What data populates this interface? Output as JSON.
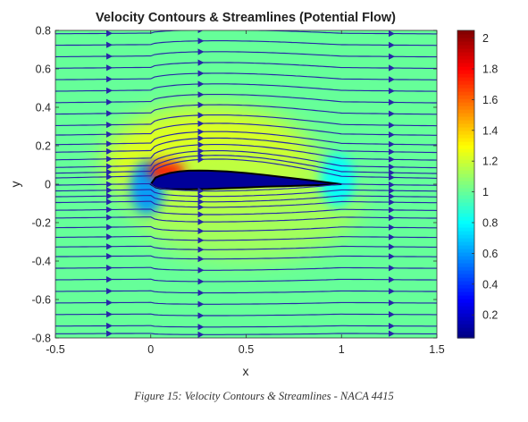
{
  "figure_caption": "Figure 15: Velocity Contours & Streamlines - NACA 4415",
  "chart_data": {
    "type": "heatmap",
    "title": "Velocity Contours & Streamlines (Potential Flow)",
    "xlabel": "x",
    "ylabel": "y",
    "xlim": [
      -0.5,
      1.5
    ],
    "ylim": [
      -0.8,
      0.8
    ],
    "x_ticks": [
      -0.5,
      0,
      0.5,
      1,
      1.5
    ],
    "x_tick_labels": [
      "-0.5",
      "0",
      "0.5",
      "1",
      "1.5"
    ],
    "y_ticks": [
      -0.8,
      -0.6,
      -0.4,
      -0.2,
      0,
      0.2,
      0.4,
      0.6,
      0.8
    ],
    "y_tick_labels": [
      "-0.8",
      "-0.6",
      "-0.4",
      "-0.2",
      "0",
      "0.2",
      "0.4",
      "0.6",
      "0.8"
    ],
    "colorbar": {
      "colormap": "jet",
      "range": [
        0.05,
        2.05
      ],
      "ticks": [
        0.2,
        0.4,
        0.6,
        0.8,
        1,
        1.2,
        1.4,
        1.6,
        1.8,
        2
      ],
      "tick_labels": [
        "0.2",
        "0.4",
        "0.6",
        "0.8",
        "1",
        "1.2",
        "1.4",
        "1.6",
        "1.8",
        "2"
      ]
    },
    "freestream_speed": 1.0,
    "airfoil": {
      "name": "NACA 4415",
      "chord": 1.0,
      "leading_edge": [
        0,
        0
      ],
      "trailing_edge": [
        1,
        0
      ],
      "upper_surface": [
        [
          0,
          0
        ],
        [
          0.025,
          0.034
        ],
        [
          0.05,
          0.044
        ],
        [
          0.1,
          0.058
        ],
        [
          0.15,
          0.066
        ],
        [
          0.2,
          0.07
        ],
        [
          0.25,
          0.071
        ],
        [
          0.3,
          0.07
        ],
        [
          0.4,
          0.066
        ],
        [
          0.5,
          0.058
        ],
        [
          0.6,
          0.048
        ],
        [
          0.7,
          0.036
        ],
        [
          0.8,
          0.024
        ],
        [
          0.9,
          0.012
        ],
        [
          1,
          0
        ]
      ],
      "lower_surface": [
        [
          0,
          0
        ],
        [
          0.025,
          -0.016
        ],
        [
          0.05,
          -0.022
        ],
        [
          0.1,
          -0.026
        ],
        [
          0.15,
          -0.027
        ],
        [
          0.2,
          -0.027
        ],
        [
          0.3,
          -0.025
        ],
        [
          0.4,
          -0.021
        ],
        [
          0.5,
          -0.017
        ],
        [
          0.6,
          -0.013
        ],
        [
          0.7,
          -0.01
        ],
        [
          0.8,
          -0.007
        ],
        [
          0.9,
          -0.004
        ],
        [
          1,
          0
        ]
      ]
    },
    "velocity_features": [
      {
        "region": "leading-edge upper suction peak",
        "x": 0.08,
        "y": 0.07,
        "speed": 1.75
      },
      {
        "region": "upper surface",
        "x": 0.3,
        "y": 0.12,
        "speed": 1.3
      },
      {
        "region": "front stagnation",
        "x": -0.02,
        "y": -0.02,
        "speed": 0.6
      },
      {
        "region": "trailing-edge stagnation",
        "x": 0.98,
        "y": 0.02,
        "speed": 0.8
      },
      {
        "region": "lower surface",
        "x": 0.5,
        "y": -0.1,
        "speed": 1.15
      },
      {
        "region": "airfoil interior",
        "x": 0.4,
        "y": 0.02,
        "speed": 0.1
      }
    ],
    "streamline_start_y": [
      0.78,
      0.72,
      0.66,
      0.6,
      0.54,
      0.48,
      0.42,
      0.36,
      0.3,
      0.25,
      0.2,
      0.16,
      0.12,
      0.08,
      0.05,
      0.025,
      -0.01,
      -0.04,
      -0.07,
      -0.1,
      -0.14,
      -0.18,
      -0.23,
      -0.28,
      -0.33,
      -0.38,
      -0.44,
      -0.5,
      -0.56,
      -0.62,
      -0.68,
      -0.74,
      -0.78
    ]
  }
}
